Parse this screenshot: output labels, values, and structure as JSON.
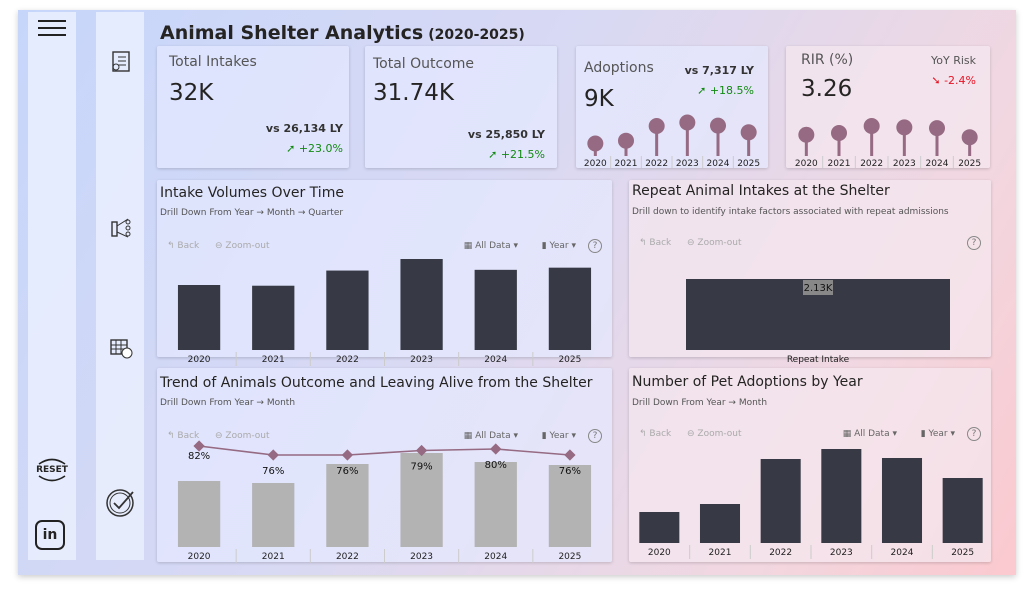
{
  "header": {
    "title": "Animal Shelter Analytics",
    "subtitle": "(2020-2025)"
  },
  "nav": {
    "menu_icon": "hamburger-icon",
    "reset_label": "RESET",
    "items": [
      "clipboard-check-icon",
      "funnel-icon",
      "calendar-clock-icon",
      "check-badge-icon"
    ],
    "linkedin_label": "in"
  },
  "kpis": {
    "intakes": {
      "title": "Total Intakes",
      "value": "32K",
      "vs": "vs 26,134 LY",
      "change": "+23.0%"
    },
    "outcome": {
      "title": "Total Outcome",
      "value": "31.74K",
      "vs": "vs 25,850 LY",
      "change": "+21.5%"
    },
    "adoptions": {
      "title": "Adoptions",
      "value": "9K",
      "vs": "vs 7,317 LY",
      "change": "+18.5%"
    },
    "rir": {
      "title": "RIR (%)",
      "value": "3.26",
      "risk_label": "YoY Risk",
      "change": "-2.4%"
    }
  },
  "colors": {
    "bar_dark": "#373a44",
    "bar_grey": "#b3b3b3",
    "accent": "#956a82",
    "up": "#128a12",
    "down": "#e81123"
  },
  "toolbar": {
    "back": "Back",
    "zoom_out": "Zoom-out",
    "all_data": "All Data",
    "year": "Year",
    "help": "?"
  },
  "chart_data": [
    {
      "id": "adoptions_spark",
      "type": "lollipop",
      "categories": [
        "2020",
        "2021",
        "2022",
        "2023",
        "2024",
        "2025"
      ],
      "values": [
        30,
        38,
        80,
        90,
        81,
        62
      ]
    },
    {
      "id": "rir_spark",
      "type": "lollipop",
      "categories": [
        "2020",
        "2021",
        "2022",
        "2023",
        "2024",
        "2025"
      ],
      "values": [
        55,
        60,
        80,
        76,
        74,
        48
      ]
    },
    {
      "id": "intake",
      "type": "bar",
      "title": "Intake Volumes Over Time",
      "subtitle": "Drill Down From Year → Month → Quarter",
      "categories": [
        "2020",
        "2021",
        "2022",
        "2023",
        "2024",
        "2025"
      ],
      "values": [
        4500,
        4450,
        5500,
        6300,
        5550,
        5700
      ]
    },
    {
      "id": "repeat",
      "type": "bar",
      "title": "Repeat Animal Intakes at the Shelter",
      "subtitle": "Drill down to identify intake factors associated with repeat admissions",
      "categories": [
        "Repeat Intake"
      ],
      "values": [
        2130
      ],
      "labels": [
        "2.13K"
      ]
    },
    {
      "id": "outcome",
      "type": "bar+line",
      "title": "Trend of Animals Outcome and Leaving Alive from the Shelter",
      "subtitle": "Drill Down From Year → Month",
      "categories": [
        "2020",
        "2021",
        "2022",
        "2023",
        "2024",
        "2025"
      ],
      "values": [
        66,
        64,
        83,
        94,
        85,
        82
      ],
      "line": [
        82,
        76,
        76,
        79,
        80,
        76
      ],
      "line_labels": [
        "82%",
        "76%",
        "76%",
        "79%",
        "80%",
        "76%"
      ]
    },
    {
      "id": "adopt",
      "type": "bar",
      "title": "Number of Pet Adoptions by Year",
      "subtitle": "Drill Down From Year → Month",
      "categories": [
        "2020",
        "2021",
        "2022",
        "2023",
        "2024",
        "2025"
      ],
      "values": [
        3100,
        3900,
        8400,
        9400,
        8500,
        6500
      ]
    }
  ]
}
